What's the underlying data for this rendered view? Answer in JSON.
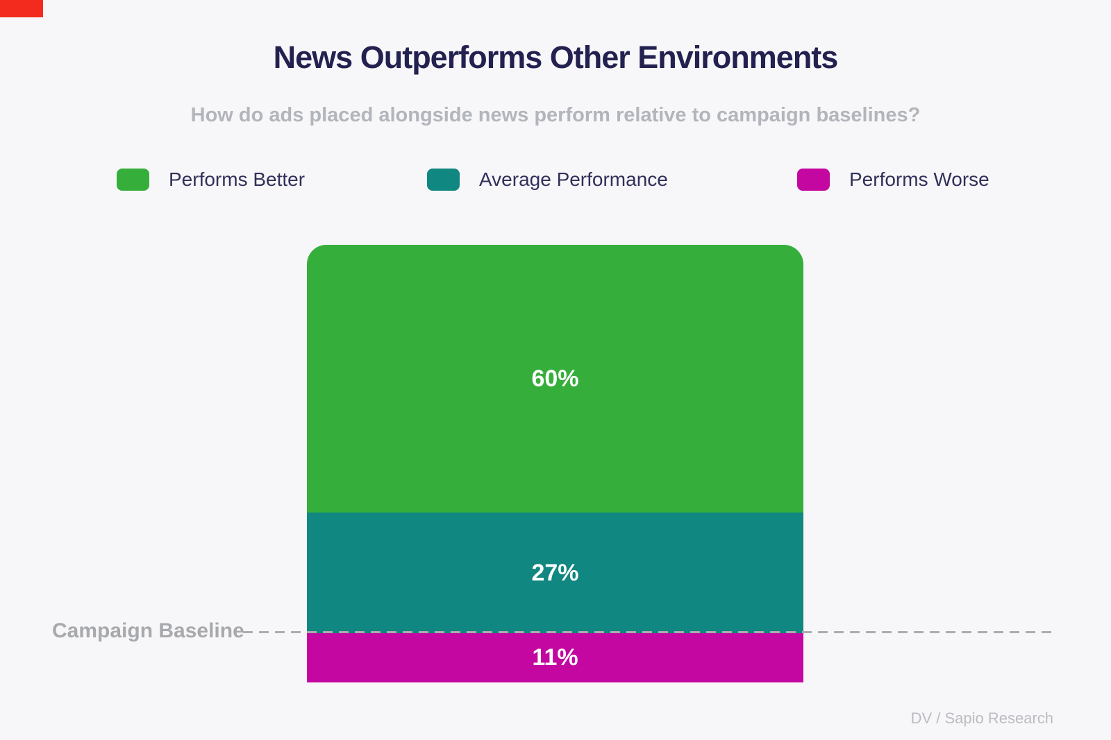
{
  "page": {
    "background_color": "#f7f7f9"
  },
  "corner_marker": {
    "color": "#f32b1e"
  },
  "header": {
    "title": "News Outperforms Other Environments",
    "subtitle": "How do ads placed alongside news perform relative to campaign baselines?"
  },
  "legend": [
    {
      "label": "Performs Better",
      "color": "#36ae3b"
    },
    {
      "label": "Average Performance",
      "color": "#108780"
    },
    {
      "label": "Performs Worse",
      "color": "#c307a0"
    }
  ],
  "chart_data": {
    "type": "bar",
    "stacked": true,
    "orientation": "vertical",
    "categories": [
      "Ads placed alongside news"
    ],
    "series": [
      {
        "name": "Performs Better",
        "value": 60,
        "label": "60%",
        "color": "#36ae3b"
      },
      {
        "name": "Average Performance",
        "value": 27,
        "label": "27%",
        "color": "#108780"
      },
      {
        "name": "Performs Worse",
        "value": 11,
        "label": "11%",
        "color": "#c307a0"
      }
    ],
    "value_format": "percent",
    "baseline": {
      "label": "Campaign Baseline",
      "position": "boundary between Average Performance and Performs Worse segments",
      "line_style": "dashed",
      "line_color": "#aaadb1"
    },
    "grid": false,
    "axes_visible": false,
    "legend_position": "top"
  },
  "footer": {
    "attribution": "DV / Sapio Research"
  }
}
